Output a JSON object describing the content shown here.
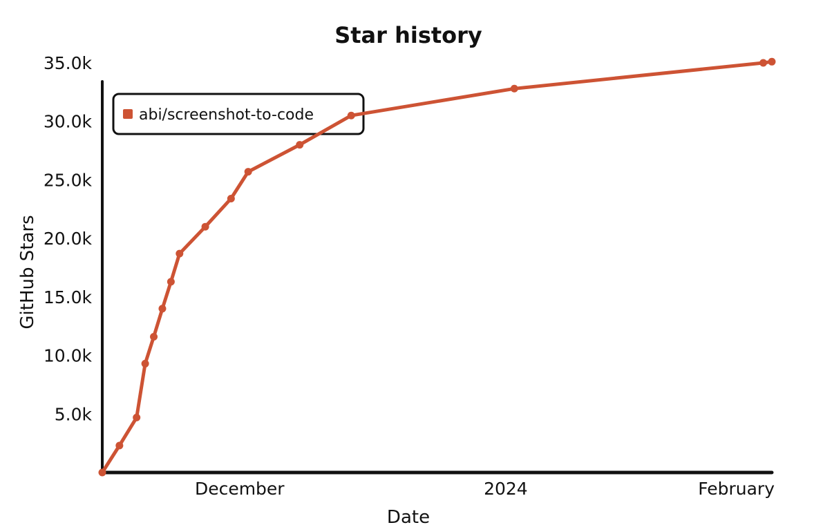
{
  "chart_data": {
    "type": "line",
    "title": "Star history",
    "xlabel": "Date",
    "ylabel": "GitHub Stars",
    "x_ticks": [
      {
        "label": "December",
        "date": "2023-12-01"
      },
      {
        "label": "2024",
        "date": "2024-01-01"
      },
      {
        "label": "February",
        "date": "2024-02-01"
      }
    ],
    "y_ticks": [
      "5.0k",
      "10.0k",
      "15.0k",
      "20.0k",
      "25.0k",
      "30.0k",
      "35.0k"
    ],
    "y_tick_values": [
      5000,
      10000,
      15000,
      20000,
      25000,
      30000,
      35000
    ],
    "ylim": [
      0,
      35000
    ],
    "xlim": [
      "2023-11-15",
      "2024-02-01"
    ],
    "legend": "top-left",
    "grid": false,
    "series": [
      {
        "name": "abi/screenshot-to-code",
        "color": "#cd5334",
        "points": [
          {
            "x": "2023-11-15",
            "y": 0
          },
          {
            "x": "2023-11-17",
            "y": 2300
          },
          {
            "x": "2023-11-19",
            "y": 4700
          },
          {
            "x": "2023-11-20",
            "y": 9300
          },
          {
            "x": "2023-11-21",
            "y": 11600
          },
          {
            "x": "2023-11-22",
            "y": 14000
          },
          {
            "x": "2023-11-23",
            "y": 16300
          },
          {
            "x": "2023-11-24",
            "y": 18700
          },
          {
            "x": "2023-11-27",
            "y": 21000
          },
          {
            "x": "2023-11-30",
            "y": 23400
          },
          {
            "x": "2023-12-02",
            "y": 25700
          },
          {
            "x": "2023-12-08",
            "y": 28000
          },
          {
            "x": "2023-12-14",
            "y": 30500
          },
          {
            "x": "2024-01-02",
            "y": 32800
          },
          {
            "x": "2024-01-31",
            "y": 35000
          },
          {
            "x": "2024-02-01",
            "y": 35100
          }
        ]
      }
    ]
  }
}
